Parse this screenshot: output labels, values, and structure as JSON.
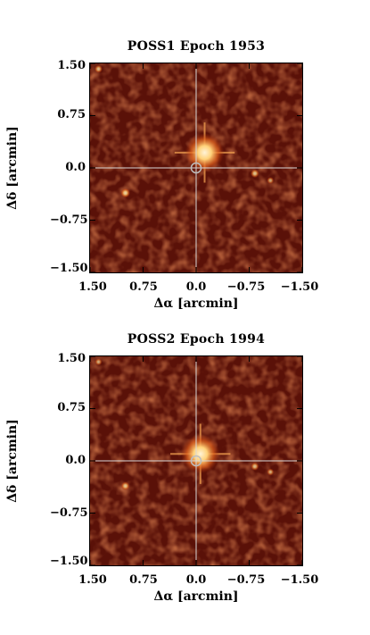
{
  "chart_data": [
    {
      "type": "image",
      "title": "POSS1 Epoch 1953",
      "xlabel": "Δα [arcmin]",
      "ylabel": "Δδ [arcmin]",
      "xlim": [
        1.5,
        -1.5
      ],
      "ylim": [
        -1.5,
        1.5
      ],
      "x_ticks": [
        "1.50",
        "0.75",
        "0.0",
        "−0.75",
        "−1.50"
      ],
      "y_ticks": [
        "1.50",
        "0.75",
        "0.0",
        "−0.75",
        "−1.50"
      ],
      "crosshair": [
        0,
        0
      ],
      "circle_marker": {
        "x": 0,
        "y": 0,
        "radius": 0.07
      },
      "sources": [
        {
          "x": -0.12,
          "y": 0.22,
          "brightness": 1.0,
          "spikes": true
        },
        {
          "x": 1.38,
          "y": 1.42,
          "brightness": 0.45
        },
        {
          "x": 1.0,
          "y": -0.36,
          "brightness": 0.7
        },
        {
          "x": -0.83,
          "y": -0.08,
          "brightness": 0.55
        },
        {
          "x": -1.05,
          "y": -0.18,
          "brightness": 0.3
        }
      ]
    },
    {
      "type": "image",
      "title": "POSS2 Epoch 1994",
      "xlabel": "Δα [arcmin]",
      "ylabel": "Δδ [arcmin]",
      "xlim": [
        1.5,
        -1.5
      ],
      "ylim": [
        -1.5,
        1.5
      ],
      "x_ticks": [
        "1.50",
        "0.75",
        "0.0",
        "−0.75",
        "−1.50"
      ],
      "y_ticks": [
        "1.50",
        "0.75",
        "0.0",
        "−0.75",
        "−1.50"
      ],
      "crosshair": [
        0,
        0
      ],
      "circle_marker": {
        "x": 0,
        "y": 0,
        "radius": 0.07
      },
      "sources": [
        {
          "x": -0.06,
          "y": 0.1,
          "brightness": 1.0,
          "spikes": true
        },
        {
          "x": 1.38,
          "y": 1.42,
          "brightness": 0.3
        },
        {
          "x": 1.0,
          "y": -0.36,
          "brightness": 0.55
        },
        {
          "x": -0.83,
          "y": -0.08,
          "brightness": 0.5
        },
        {
          "x": -1.05,
          "y": -0.16,
          "brightness": 0.3
        }
      ]
    }
  ],
  "colors": {
    "background": "#5a1108",
    "mid": "#8a2a10",
    "highlight": "#fff3d8",
    "crosshair": "#d8d8d8"
  }
}
